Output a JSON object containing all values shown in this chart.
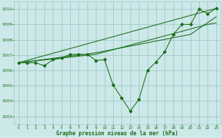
{
  "background_color": "#cce8e8",
  "grid_color": "#a0c8c8",
  "line_color": "#1a6e1a",
  "xlabel": "Graphe pression niveau de la mer (hPa)",
  "ylim": [
    1002.5,
    1010.5
  ],
  "xlim": [
    -0.5,
    23.5
  ],
  "yticks": [
    1003,
    1004,
    1005,
    1006,
    1007,
    1008,
    1009,
    1010
  ],
  "xticks": [
    0,
    1,
    2,
    3,
    4,
    5,
    6,
    7,
    8,
    9,
    10,
    11,
    12,
    13,
    14,
    15,
    16,
    17,
    18,
    19,
    20,
    21,
    22,
    23
  ],
  "main_x": [
    0,
    1,
    2,
    3,
    4,
    5,
    6,
    7,
    8,
    9,
    10,
    11,
    12,
    13,
    14,
    15,
    16,
    17,
    18,
    19,
    20,
    21,
    22,
    23
  ],
  "main_y": [
    1006.5,
    1006.5,
    1006.5,
    1006.3,
    1006.7,
    1006.8,
    1007.05,
    1007.05,
    1007.05,
    1006.65,
    1006.7,
    1005.05,
    1004.2,
    1003.35,
    1004.1,
    1006.0,
    1006.55,
    1007.2,
    1008.35,
    1009.0,
    1009.0,
    1010.0,
    1009.7,
    1010.05
  ],
  "line2_x": [
    0,
    23
  ],
  "line2_y": [
    1006.5,
    1010.05
  ],
  "line3_x": [
    0,
    9,
    22,
    23
  ],
  "line3_y": [
    1006.5,
    1007.05,
    1009.0,
    1009.1
  ],
  "line4_x": [
    0,
    9,
    20,
    23
  ],
  "line4_y": [
    1006.5,
    1007.15,
    1008.35,
    1009.5
  ]
}
